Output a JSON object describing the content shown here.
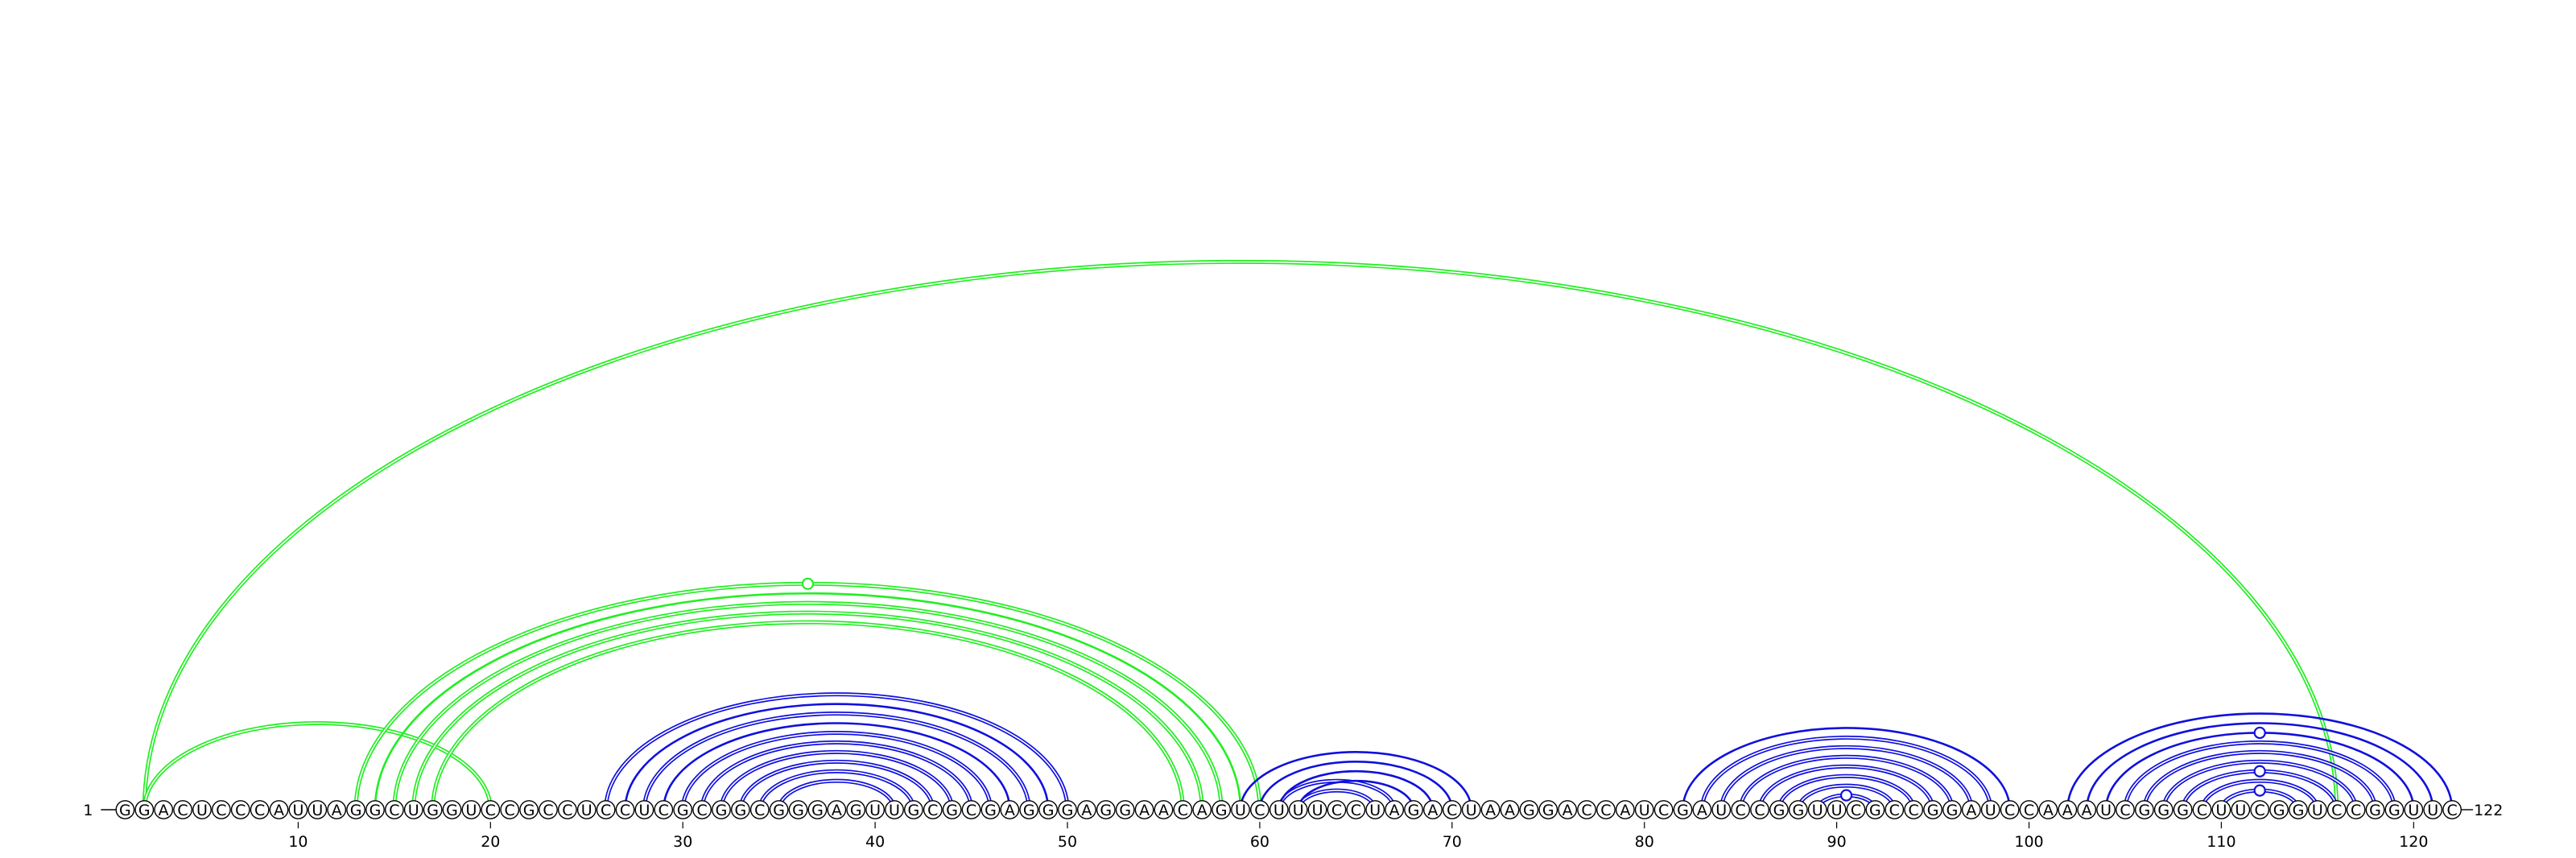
{
  "sequence": "GGACUCCCAUUAGGCUGGUCCGCCUCCUCGCGGCGGGAGUUGCGCGAGGGAGGAACAGUCUUUCCUAGACUAAGGACCAUCGAUCCGGUUCGCCGGAUCCAAAUCGGGCUUCGGUCCGGUUC",
  "length": 122,
  "start_label": "1",
  "end_label": "122",
  "ticks": [
    {
      "pos": 10,
      "label": "10"
    },
    {
      "pos": 20,
      "label": "20"
    },
    {
      "pos": 30,
      "label": "30"
    },
    {
      "pos": 40,
      "label": "40"
    },
    {
      "pos": 50,
      "label": "50"
    },
    {
      "pos": 60,
      "label": "60"
    },
    {
      "pos": 70,
      "label": "70"
    },
    {
      "pos": 80,
      "label": "80"
    },
    {
      "pos": 90,
      "label": "90"
    },
    {
      "pos": 100,
      "label": "100"
    },
    {
      "pos": 110,
      "label": "110"
    },
    {
      "pos": 120,
      "label": "120"
    }
  ],
  "colors": {
    "pseudoknot": "#22ee22",
    "nested": "#1010dd"
  },
  "arc_groups": [
    {
      "name": "long-range-pseudoknot",
      "color": "pseudoknot",
      "style": "double",
      "pairs": [
        [
          2,
          116
        ]
      ]
    },
    {
      "name": "pk-stem-a",
      "color": "pseudoknot",
      "style": "double",
      "pairs": [
        [
          2,
          20
        ]
      ]
    },
    {
      "name": "pk-stem-b",
      "color": "pseudoknot",
      "style": "double",
      "pairs": [
        [
          13,
          60
        ],
        [
          15,
          58
        ],
        [
          16,
          57
        ],
        [
          17,
          56
        ]
      ]
    },
    {
      "name": "pk-stem-b-single",
      "color": "pseudoknot",
      "style": "single",
      "pairs": [
        [
          14,
          59
        ]
      ]
    },
    {
      "name": "hairpin-1",
      "color": "nested",
      "style": "double",
      "pairs": [
        [
          26,
          50
        ],
        [
          28,
          48
        ],
        [
          30,
          46
        ],
        [
          31,
          45
        ],
        [
          32,
          44
        ],
        [
          33,
          43
        ],
        [
          34,
          42
        ],
        [
          35,
          41
        ]
      ]
    },
    {
      "name": "hairpin-1-single",
      "color": "nested",
      "style": "single",
      "pairs": [
        [
          27,
          49
        ],
        [
          29,
          47
        ]
      ]
    },
    {
      "name": "hairpin-2",
      "color": "nested",
      "style": "double",
      "pairs": [
        [
          61,
          67
        ],
        [
          62,
          66
        ]
      ]
    },
    {
      "name": "hairpin-2-single",
      "color": "nested",
      "style": "single",
      "pairs": [
        [
          59,
          71
        ],
        [
          60,
          70
        ],
        [
          61,
          69
        ],
        [
          62,
          68
        ]
      ]
    },
    {
      "name": "hairpin-3",
      "color": "nested",
      "style": "double",
      "pairs": [
        [
          83,
          98
        ],
        [
          84,
          97
        ],
        [
          85,
          96
        ],
        [
          86,
          95
        ],
        [
          87,
          94
        ],
        [
          88,
          93
        ],
        [
          89,
          92
        ]
      ]
    },
    {
      "name": "hairpin-3-single",
      "color": "nested",
      "style": "single",
      "pairs": [
        [
          82,
          99
        ]
      ]
    },
    {
      "name": "hairpin-4",
      "color": "nested",
      "style": "double",
      "pairs": [
        [
          105,
          119
        ],
        [
          106,
          118
        ],
        [
          107,
          117
        ],
        [
          108,
          116
        ],
        [
          109,
          115
        ],
        [
          110,
          114
        ]
      ]
    },
    {
      "name": "hairpin-4-single",
      "color": "nested",
      "style": "single",
      "pairs": [
        [
          102,
          122
        ],
        [
          103,
          121
        ],
        [
          104,
          120
        ]
      ]
    }
  ],
  "bulge_markers": [
    {
      "between": [
        13,
        60
      ],
      "height": 160,
      "color": "pseudoknot"
    },
    {
      "between": [
        89,
        92
      ],
      "height": 18,
      "color": "nested"
    },
    {
      "between": [
        104,
        120
      ],
      "height": 94,
      "color": "nested"
    },
    {
      "between": [
        108,
        116
      ],
      "height": 59,
      "color": "nested"
    },
    {
      "between": [
        110,
        114
      ],
      "height": 30,
      "color": "nested"
    }
  ]
}
